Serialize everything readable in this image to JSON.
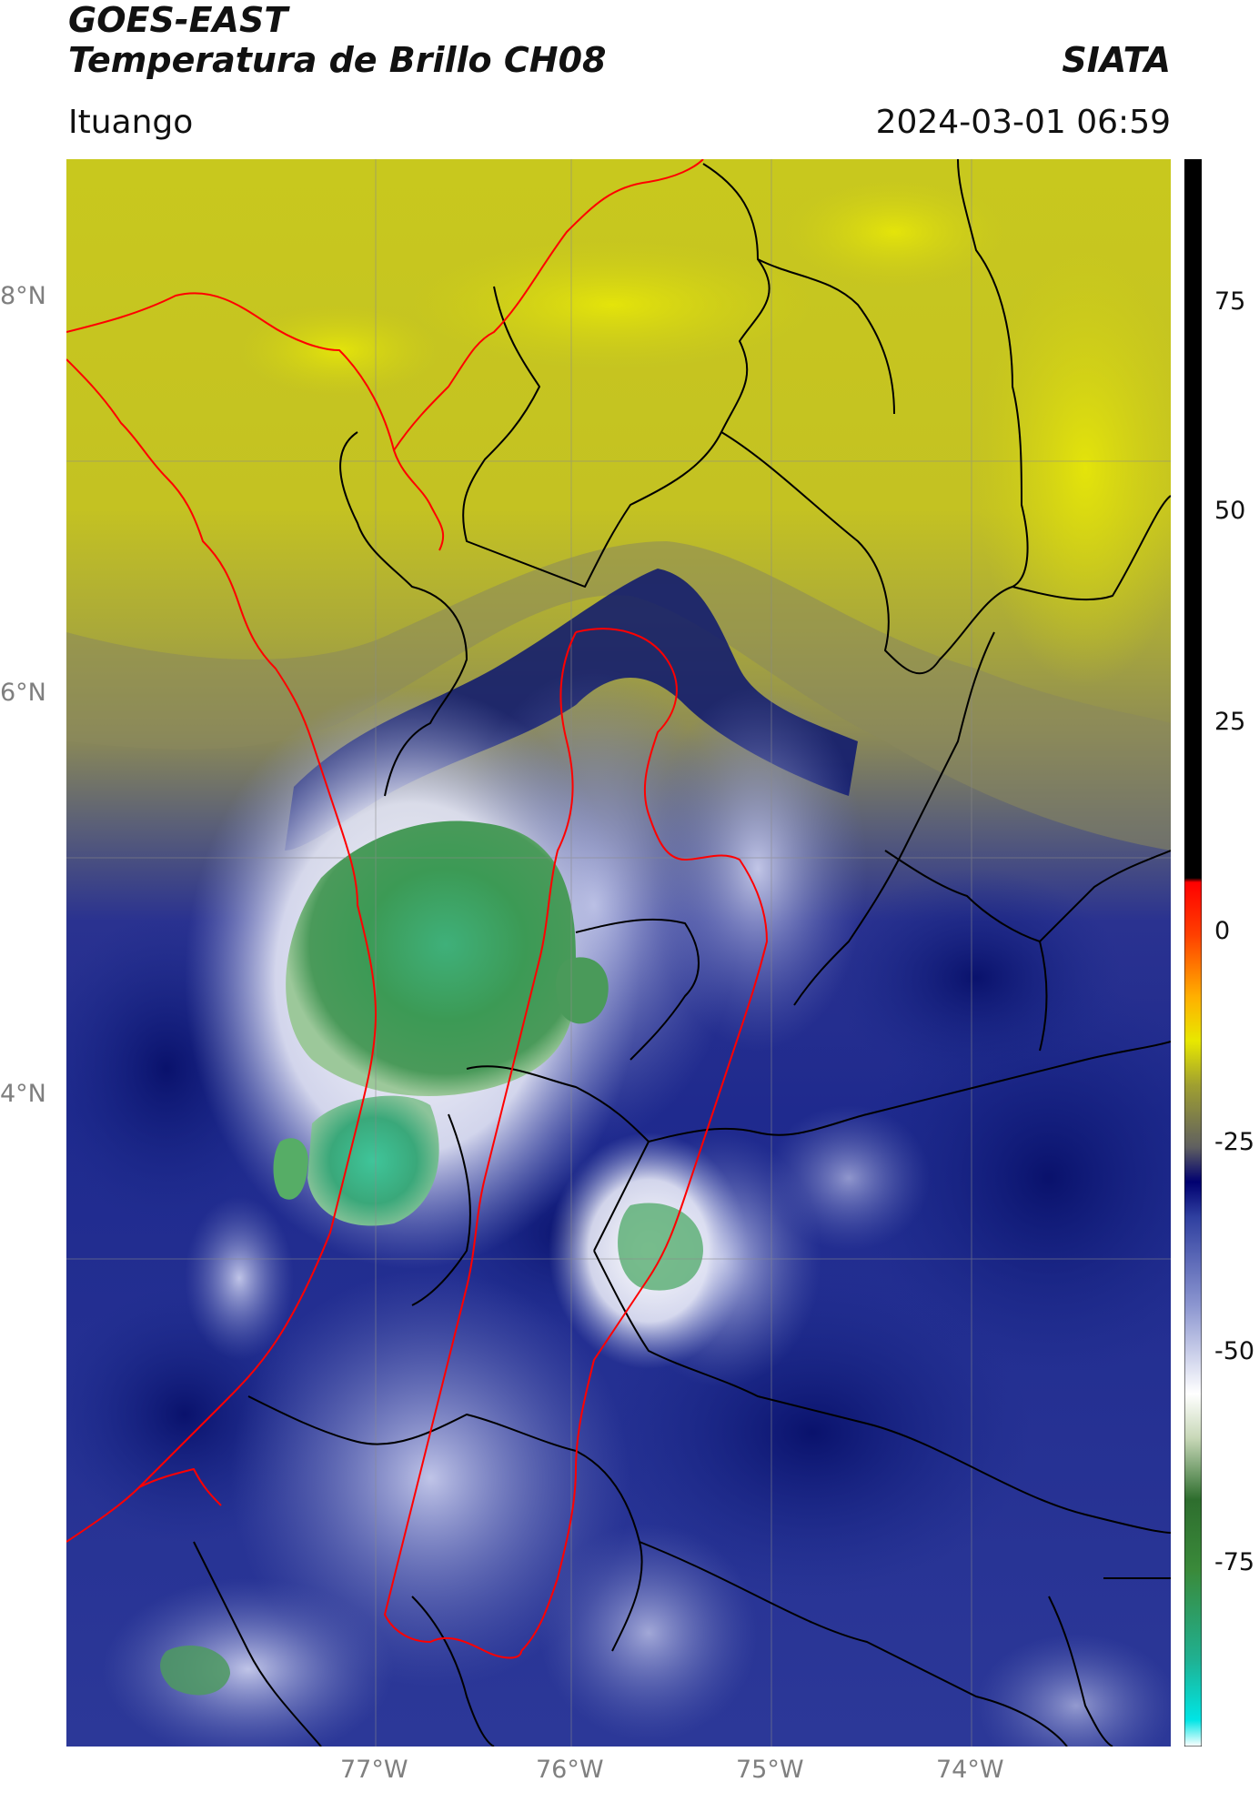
{
  "header": {
    "title_line1": "GOES-EAST",
    "title_line2": "Temperatura de Brillo CH08",
    "brand": "SIATA",
    "location": "Ituango",
    "datetime": "2024-03-01 06:59"
  },
  "map": {
    "lat_labels": [
      "8°N",
      "6°N",
      "4°N"
    ],
    "lon_labels": [
      "77°W",
      "76°W",
      "75°W",
      "74°W"
    ],
    "colors": {
      "yellow_high": "#d4d41a",
      "yellow_low": "#a8a83a",
      "dark_olive": "#7a7a55",
      "navy": "#1a2a8a",
      "deep_navy": "#0b1570",
      "light_blue": "#8c96d0",
      "white_cloud": "#f2f2fa",
      "green_core": "#3e9a55",
      "teal_core": "#3fb58a",
      "boundary_black": "#000000",
      "boundary_red": "#ff0000"
    }
  },
  "colorbar": {
    "labels": [
      "75",
      "50",
      "25",
      "0",
      "-25",
      "-50",
      "-75"
    ],
    "min": -90,
    "max": 90,
    "stops": [
      {
        "value": -90,
        "color": "#ffffff"
      },
      {
        "value": -87,
        "color": "#00e5e5"
      },
      {
        "value": -80,
        "color": "#20b090"
      },
      {
        "value": -70,
        "color": "#3a8a3a"
      },
      {
        "value": -62,
        "color": "#2e6e2e"
      },
      {
        "value": -55,
        "color": "#c8d8b8"
      },
      {
        "value": -50,
        "color": "#ffffff"
      },
      {
        "value": -40,
        "color": "#8c96d0"
      },
      {
        "value": -30,
        "color": "#3040a0"
      },
      {
        "value": -26,
        "color": "#000070"
      },
      {
        "value": -22,
        "color": "#606060"
      },
      {
        "value": -15,
        "color": "#a0a030"
      },
      {
        "value": -10,
        "color": "#e8e800"
      },
      {
        "value": -5,
        "color": "#ffb000"
      },
      {
        "value": 2,
        "color": "#ff4000"
      },
      {
        "value": 8,
        "color": "#ff0000"
      },
      {
        "value": 8.5,
        "color": "#000000"
      },
      {
        "value": 90,
        "color": "#000000"
      }
    ]
  }
}
